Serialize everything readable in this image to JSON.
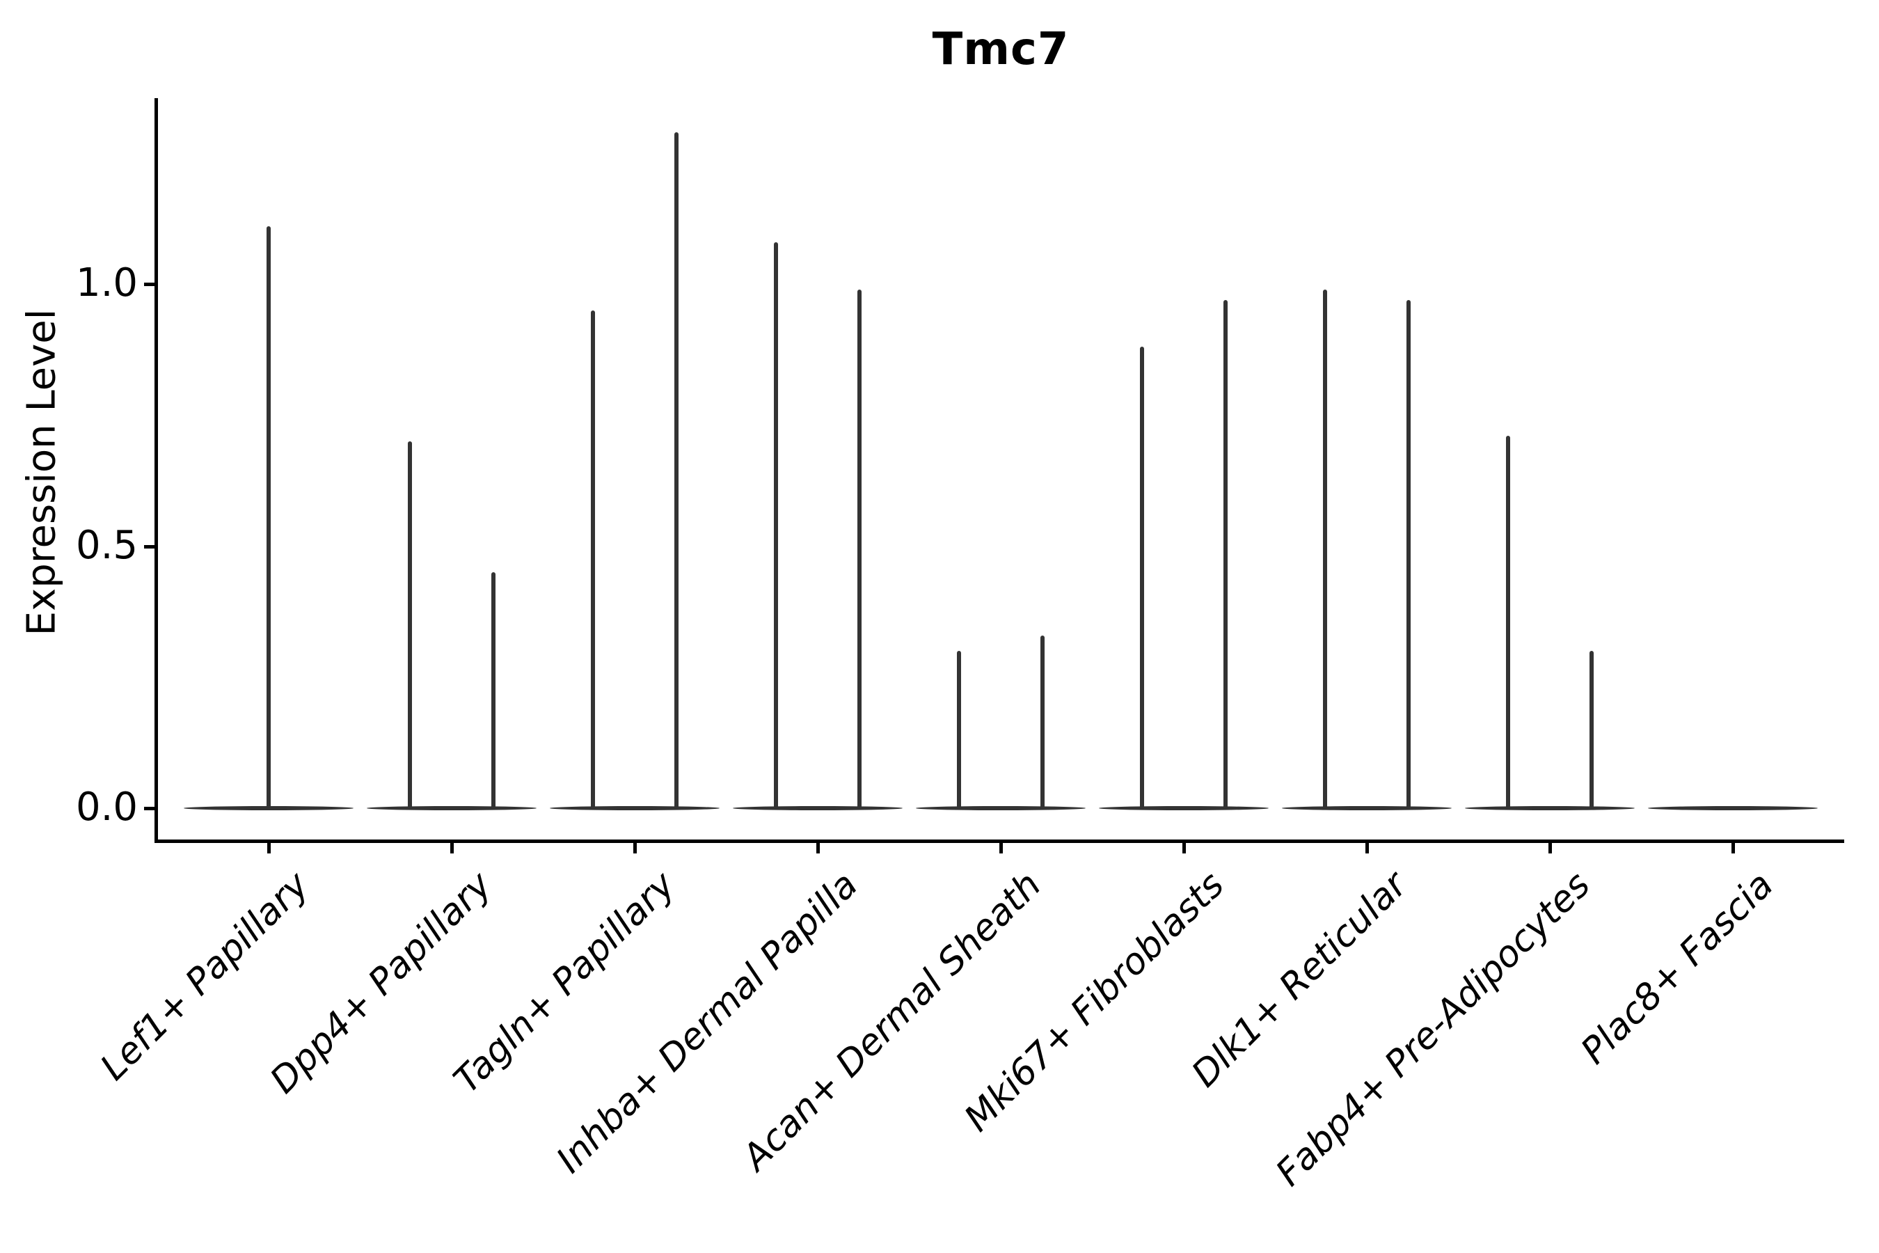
{
  "chart_data": {
    "type": "violin",
    "title": "Tmc7",
    "ylabel": "Expression Level",
    "xlabel": "",
    "grid": false,
    "legend": "none",
    "ylim": [
      -0.06,
      1.35
    ],
    "yticks": [
      {
        "value": 0.0,
        "label": "0.0"
      },
      {
        "value": 0.5,
        "label": "0.5"
      },
      {
        "value": 1.0,
        "label": "1.0"
      }
    ],
    "categories": [
      "Lef1+ Papillary",
      "Dpp4+ Papillary",
      "Tagln+ Papillary",
      "Inhba+ Dermal Papilla",
      "Acan+ Dermal Sheath",
      "Mki67+ Fibroblasts",
      "Dlk1+ Reticular",
      "Fabp4+ Pre-Adipocytes",
      "Plac8+ Fascia"
    ],
    "violins": [
      {
        "category": "Lef1+ Papillary",
        "spikes": [
          {
            "offset": 0,
            "peak": 1.11
          }
        ]
      },
      {
        "category": "Dpp4+ Papillary",
        "spikes": [
          {
            "offset": -60,
            "peak": 0.7
          },
          {
            "offset": 60,
            "peak": 0.45
          }
        ]
      },
      {
        "category": "Tagln+ Papillary",
        "spikes": [
          {
            "offset": -60,
            "peak": 0.95
          },
          {
            "offset": 60,
            "peak": 1.29
          }
        ]
      },
      {
        "category": "Inhba+ Dermal Papilla",
        "spikes": [
          {
            "offset": -60,
            "peak": 1.08
          },
          {
            "offset": 60,
            "peak": 0.99
          }
        ]
      },
      {
        "category": "Acan+ Dermal Sheath",
        "spikes": [
          {
            "offset": -60,
            "peak": 0.3
          },
          {
            "offset": 60,
            "peak": 0.33
          }
        ]
      },
      {
        "category": "Mki67+ Fibroblasts",
        "spikes": [
          {
            "offset": -60,
            "peak": 0.88
          },
          {
            "offset": 60,
            "peak": 0.97
          }
        ]
      },
      {
        "category": "Dlk1+ Reticular",
        "spikes": [
          {
            "offset": -60,
            "peak": 0.99
          },
          {
            "offset": 60,
            "peak": 0.97
          }
        ]
      },
      {
        "category": "Fabp4+ Pre-Adipocytes",
        "spikes": [
          {
            "offset": -60,
            "peak": 0.71
          },
          {
            "offset": 60,
            "peak": 0.3
          }
        ]
      },
      {
        "category": "Plac8+ Fascia",
        "spikes": []
      }
    ],
    "colors": {
      "violin": "#333333",
      "spine": "#000000",
      "text": "#000000",
      "background": "#ffffff"
    }
  }
}
